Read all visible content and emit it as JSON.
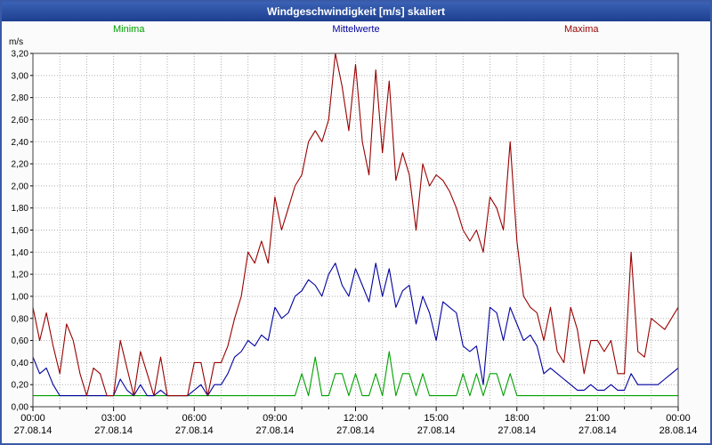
{
  "title": "Windgeschwindigkeit [m/s] skaliert",
  "legend": {
    "minima": "Minima",
    "mittelwerte": "Mittelwerte",
    "maxima": "Maxima"
  },
  "colors": {
    "minima": "#00a000",
    "mittelwerte": "#0000a0",
    "maxima": "#990000",
    "titlebar": "#2c56a4",
    "grid": "#b0b0b0",
    "frame": "#404040"
  },
  "chart_data": {
    "type": "line",
    "title": "Windgeschwindigkeit [m/s] skaliert",
    "xlabel": "",
    "ylabel": "m/s",
    "ylim": [
      0,
      3.2
    ],
    "ytick_step": 0.2,
    "ytick_labels": [
      "0,00",
      "0,20",
      "0,40",
      "0,60",
      "0,80",
      "1,00",
      "1,20",
      "1,40",
      "1,60",
      "1,80",
      "2,00",
      "2,20",
      "2,40",
      "2,60",
      "2,80",
      "3,00",
      "3,20"
    ],
    "x_hours_range": [
      0,
      24
    ],
    "x_step_hours": 0.25,
    "xtick_hours": [
      0,
      3,
      6,
      9,
      12,
      15,
      18,
      21,
      24
    ],
    "xtick_times": [
      "00:00",
      "03:00",
      "06:00",
      "09:00",
      "12:00",
      "15:00",
      "18:00",
      "21:00",
      "00:00"
    ],
    "xtick_dates": [
      "27.08.14",
      "27.08.14",
      "27.08.14",
      "27.08.14",
      "27.08.14",
      "27.08.14",
      "27.08.14",
      "27.08.14",
      "28.08.14"
    ],
    "grid": true,
    "legend_position": "top",
    "series": [
      {
        "name": "Minima",
        "color": "#00a000",
        "values": [
          0.1,
          0.1,
          0.1,
          0.1,
          0.1,
          0.1,
          0.1,
          0.1,
          0.1,
          0.1,
          0.1,
          0.1,
          0.1,
          0.1,
          0.1,
          0.1,
          0.1,
          0.1,
          0.1,
          0.1,
          0.1,
          0.1,
          0.1,
          0.1,
          0.1,
          0.1,
          0.1,
          0.1,
          0.1,
          0.1,
          0.1,
          0.1,
          0.1,
          0.1,
          0.1,
          0.1,
          0.1,
          0.1,
          0.1,
          0.1,
          0.3,
          0.1,
          0.45,
          0.1,
          0.1,
          0.3,
          0.3,
          0.1,
          0.3,
          0.1,
          0.1,
          0.3,
          0.1,
          0.5,
          0.1,
          0.3,
          0.3,
          0.1,
          0.3,
          0.1,
          0.1,
          0.1,
          0.1,
          0.1,
          0.3,
          0.1,
          0.3,
          0.1,
          0.3,
          0.3,
          0.1,
          0.3,
          0.1,
          0.1,
          0.1,
          0.1,
          0.1,
          0.1,
          0.1,
          0.1,
          0.1,
          0.1,
          0.1,
          0.1,
          0.1,
          0.1,
          0.1,
          0.1,
          0.1,
          0.1,
          0.1,
          0.1,
          0.1,
          0.1,
          0.1,
          0.1,
          0.1
        ]
      },
      {
        "name": "Mittelwerte",
        "color": "#0000a0",
        "values": [
          0.45,
          0.3,
          0.35,
          0.2,
          0.1,
          0.1,
          0.1,
          0.1,
          0.1,
          0.1,
          0.1,
          0.1,
          0.1,
          0.25,
          0.15,
          0.1,
          0.2,
          0.1,
          0.1,
          0.15,
          0.1,
          0.1,
          0.1,
          0.1,
          0.15,
          0.2,
          0.1,
          0.2,
          0.2,
          0.3,
          0.45,
          0.5,
          0.6,
          0.55,
          0.65,
          0.6,
          0.9,
          0.8,
          0.85,
          1.0,
          1.05,
          1.15,
          1.1,
          1.0,
          1.2,
          1.3,
          1.1,
          1.0,
          1.25,
          1.1,
          0.95,
          1.3,
          1.0,
          1.25,
          0.9,
          1.05,
          1.1,
          0.75,
          1.0,
          0.85,
          0.6,
          0.95,
          0.9,
          0.85,
          0.55,
          0.5,
          0.55,
          0.2,
          0.9,
          0.85,
          0.6,
          0.9,
          0.75,
          0.6,
          0.65,
          0.55,
          0.3,
          0.35,
          0.3,
          0.25,
          0.2,
          0.15,
          0.15,
          0.2,
          0.15,
          0.15,
          0.2,
          0.15,
          0.15,
          0.3,
          0.2,
          0.2,
          0.2,
          0.2,
          0.25,
          0.3,
          0.35
        ]
      },
      {
        "name": "Maxima",
        "color": "#990000",
        "values": [
          0.9,
          0.6,
          0.85,
          0.55,
          0.3,
          0.75,
          0.6,
          0.3,
          0.1,
          0.35,
          0.3,
          0.1,
          0.1,
          0.6,
          0.35,
          0.1,
          0.5,
          0.3,
          0.1,
          0.45,
          0.1,
          0.1,
          0.1,
          0.1,
          0.4,
          0.4,
          0.1,
          0.4,
          0.4,
          0.55,
          0.8,
          1.0,
          1.4,
          1.3,
          1.5,
          1.3,
          1.9,
          1.6,
          1.8,
          2.0,
          2.1,
          2.4,
          2.5,
          2.4,
          2.6,
          3.2,
          2.9,
          2.5,
          3.1,
          2.4,
          2.1,
          3.05,
          2.3,
          2.95,
          2.05,
          2.3,
          2.1,
          1.6,
          2.2,
          2.0,
          2.1,
          2.05,
          1.95,
          1.8,
          1.6,
          1.5,
          1.6,
          1.4,
          1.9,
          1.8,
          1.6,
          2.4,
          1.5,
          1.0,
          0.9,
          0.85,
          0.6,
          0.9,
          0.5,
          0.4,
          0.9,
          0.7,
          0.3,
          0.6,
          0.6,
          0.5,
          0.6,
          0.3,
          0.3,
          1.4,
          0.5,
          0.45,
          0.8,
          0.75,
          0.7,
          0.8,
          0.9
        ]
      }
    ]
  }
}
